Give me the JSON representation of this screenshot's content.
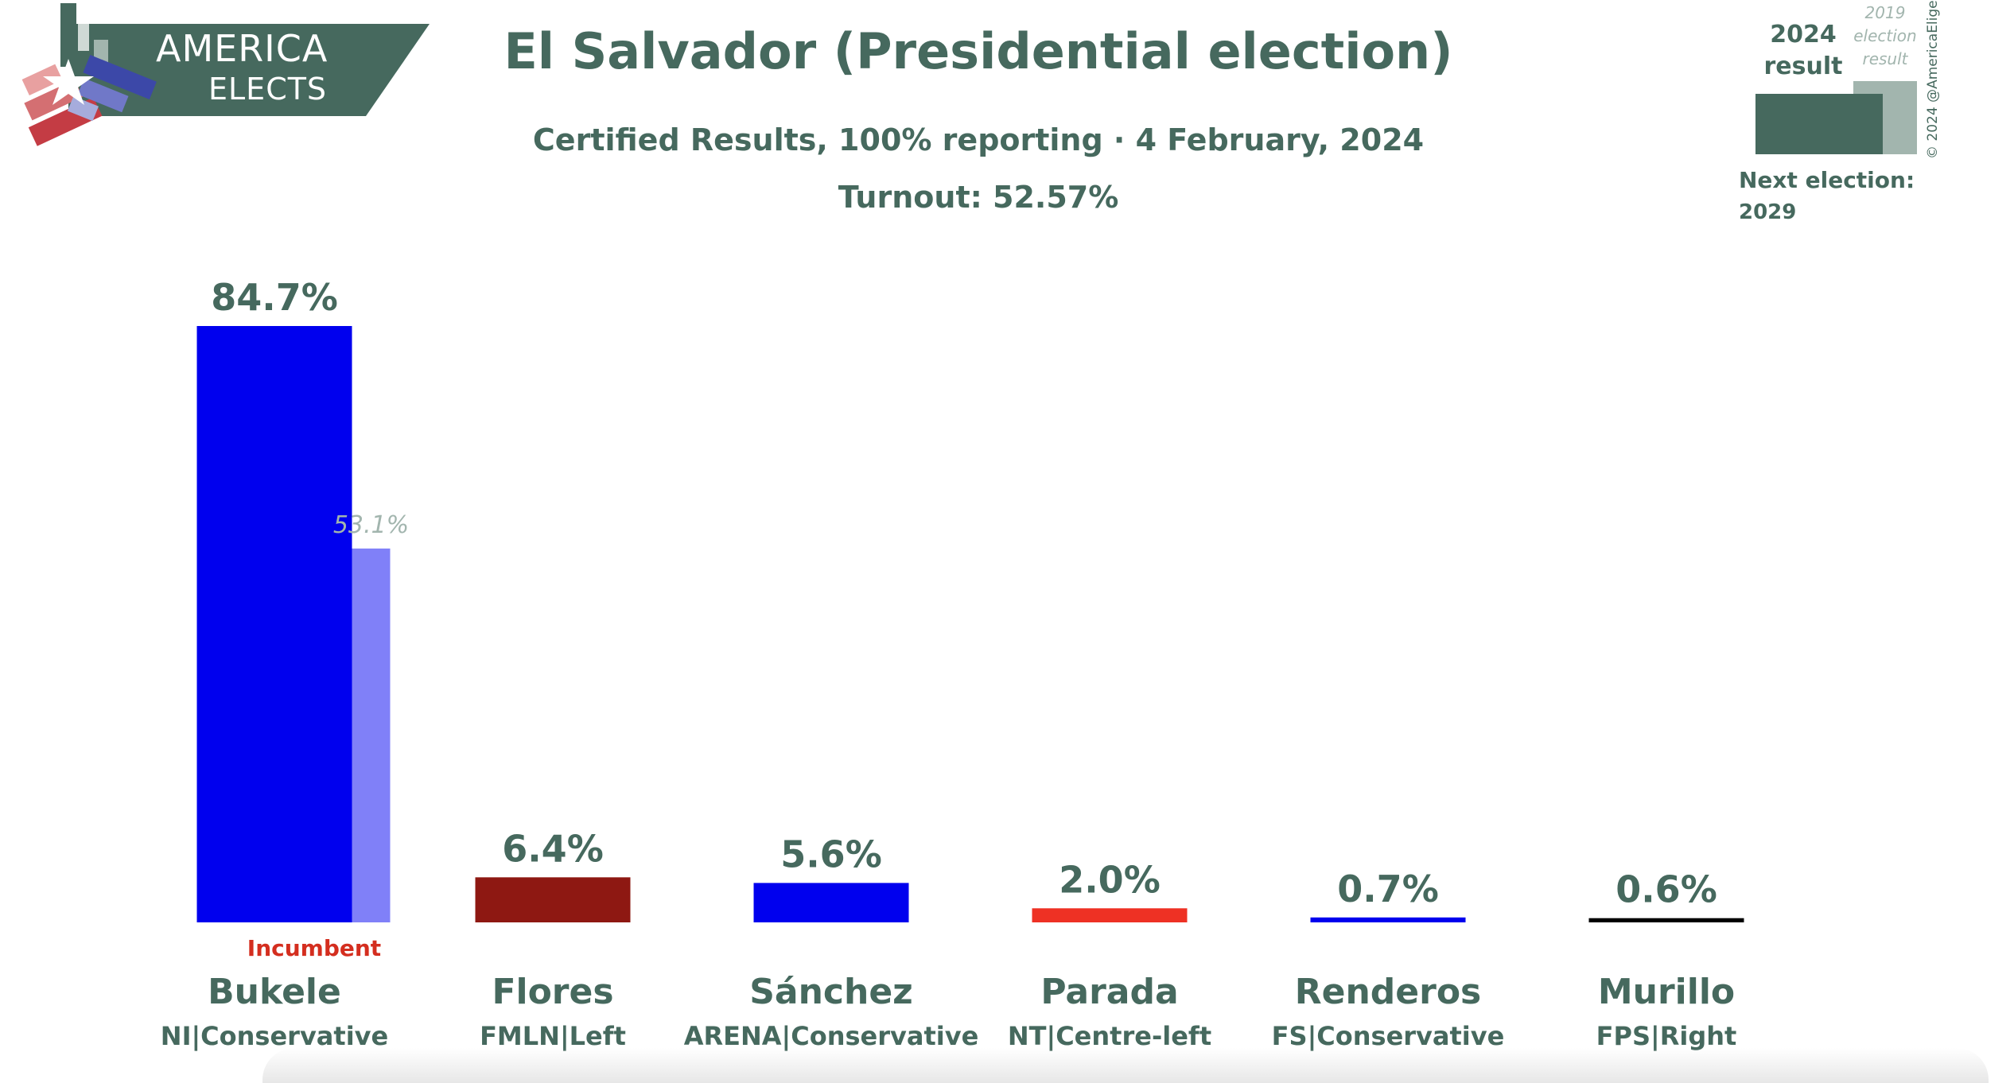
{
  "logo": {
    "line1": "AMERICA",
    "line2": "ELECTS"
  },
  "header": {
    "title": "El Salvador (Presidential election)",
    "subtitle": "Certified Results, 100% reporting · 4 February, 2024",
    "turnout": "Turnout: 52.57%"
  },
  "legend": {
    "current_label_line1": "2024",
    "current_label_line2": "result",
    "previous_label_line1": "2019",
    "previous_label_line2": "election",
    "previous_label_line3": "result",
    "copyright": "© 2024 @AmericaElige",
    "next_election_label": "Next election:",
    "next_election_year": "2029"
  },
  "colors": {
    "brand": "#46695e",
    "previous": "#a2b5ae",
    "incumbent_text": "#d42e1f"
  },
  "chart_data": {
    "type": "bar",
    "categories": [
      "Bukele",
      "Flores",
      "Sánchez",
      "Parada",
      "Renderos",
      "Murillo"
    ],
    "parties": [
      "NI|Conservative",
      "FMLN|Left",
      "ARENA|Conservative",
      "NT|Centre-left",
      "FS|Conservative",
      "FPS|Right"
    ],
    "series": [
      {
        "values": [
          84.7,
          6.4,
          5.6,
          2.0,
          0.7,
          0.6
        ],
        "labels": [
          "84.7%",
          "6.4%",
          "5.6%",
          "2.0%",
          "0.7%",
          "0.6%"
        ]
      },
      {
        "values": [
          53.1,
          null,
          null,
          null,
          null,
          null
        ],
        "labels": [
          "53.1%",
          "",
          "",
          "",
          "",
          ""
        ]
      }
    ],
    "bar_colors": [
      "#0000ee",
      "#8e1812",
      "#0000ee",
      "#ee3124",
      "#0000ee",
      "#000000"
    ],
    "previous_bar_colors": [
      "#8080f8",
      null,
      null,
      null,
      null,
      null
    ],
    "annotations": [
      {
        "category": "Bukele",
        "text": "Incumbent"
      }
    ],
    "ylim": [
      0,
      100
    ],
    "grid": false
  }
}
